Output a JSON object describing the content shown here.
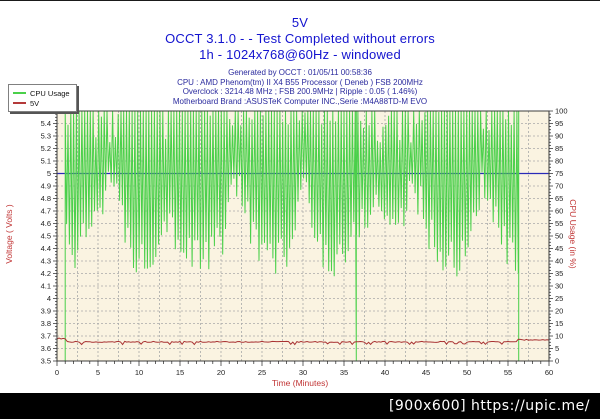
{
  "header": {
    "title": "5V",
    "subtitle_line1": "OCCT 3.1.0 -  - Test Completed without errors",
    "subtitle_line2": "1h - 1024x768@60Hz - windowed",
    "info_lines": [
      "Generated by OCCT : 01/05/11 00:58:36",
      "CPU : AMD Phenom(tm) II X4 B55 Processor ( Deneb ) FSB 200MHz",
      "Overclock : 3214.48 MHz ; FSB 200.9MHz | Ripple : 0.05 ( 1.46%)",
      "Motherboard Brand :ASUSTeK Computer INC.,Serie :M4A88TD-M EVO"
    ]
  },
  "legend": {
    "items": [
      {
        "label": "CPU Usage",
        "color": "#4ad04a"
      },
      {
        "label": "5V",
        "color": "#b43a3a"
      }
    ]
  },
  "watermark": {
    "text": "[900x600] https://upic.me/"
  },
  "colors": {
    "plot_bg": "#faf3e1",
    "grid": "#a9a9a9",
    "frame": "#3c3c3c",
    "tick_text": "#1f1f1f",
    "cpu_green": "#4ad04a",
    "volt_red": "#a83232",
    "ref_blue": "#2a2ab8"
  },
  "chart_data": {
    "type": "line",
    "title": "5V",
    "x_axis": {
      "label": "Time (Minutes)",
      "min": 0,
      "max": 60,
      "label_step": 5,
      "minor_tick_step": 1,
      "grid_step": 2.5
    },
    "y_left": {
      "label": "Voltage ( Volts )",
      "min": 3.5,
      "max": 5.5,
      "label_step": 0.1
    },
    "y_right": {
      "label": "CPU Usage (in %)",
      "min": 0,
      "max": 100,
      "label_step": 5
    },
    "reference_line": {
      "name": "nominal-5v",
      "axis": "left",
      "value": 5.0
    },
    "series": [
      {
        "name": "CPU Usage",
        "axis": "right",
        "type": "oscillating",
        "osc_top": 100,
        "osc_half_period": 0.17,
        "start": 1.0,
        "end": 56.3,
        "full_drops": [
          1.0,
          36.5,
          56.3
        ],
        "min_envelope": [
          [
            1.2,
            48
          ],
          [
            2,
            42
          ],
          [
            3,
            45
          ],
          [
            4,
            55
          ],
          [
            5,
            62
          ],
          [
            6,
            70
          ],
          [
            6.5,
            74
          ],
          [
            7,
            68
          ],
          [
            8,
            55
          ],
          [
            9,
            45
          ],
          [
            10,
            40
          ],
          [
            11,
            42
          ],
          [
            12,
            48
          ],
          [
            13,
            55
          ],
          [
            13.5,
            60
          ],
          [
            14,
            55
          ],
          [
            15,
            48
          ],
          [
            16,
            42
          ],
          [
            17,
            45
          ],
          [
            18,
            40
          ],
          [
            19,
            44
          ],
          [
            20,
            48
          ],
          [
            21,
            58
          ],
          [
            21.5,
            68
          ],
          [
            22,
            73
          ],
          [
            23,
            62
          ],
          [
            24,
            50
          ],
          [
            25,
            42
          ],
          [
            26,
            40
          ],
          [
            27,
            44
          ],
          [
            28,
            40
          ],
          [
            29,
            52
          ],
          [
            29.5,
            62
          ],
          [
            30,
            70
          ],
          [
            30.5,
            66
          ],
          [
            31,
            56
          ],
          [
            32,
            46
          ],
          [
            33,
            42
          ],
          [
            34,
            40
          ],
          [
            35,
            44
          ],
          [
            36,
            48
          ],
          [
            37,
            55
          ],
          [
            38,
            60
          ],
          [
            39,
            63
          ],
          [
            40,
            58
          ],
          [
            41,
            55
          ],
          [
            42,
            58
          ],
          [
            43,
            65
          ],
          [
            43.5,
            72
          ],
          [
            44,
            66
          ],
          [
            45,
            56
          ],
          [
            46,
            46
          ],
          [
            47,
            40
          ],
          [
            48,
            43
          ],
          [
            49,
            39
          ],
          [
            50,
            46
          ],
          [
            51,
            58
          ],
          [
            51.5,
            68
          ],
          [
            52,
            70
          ],
          [
            53,
            60
          ],
          [
            54,
            50
          ],
          [
            55,
            44
          ],
          [
            56,
            38
          ]
        ]
      },
      {
        "name": "5V",
        "axis": "left",
        "type": "noisy-flat",
        "sample_step": 0.25,
        "segments": [
          {
            "from": 0,
            "to": 1.0,
            "value": 3.68
          },
          {
            "from": 1.0,
            "to": 56.2,
            "value": 3.653
          },
          {
            "from": 56.2,
            "to": 60,
            "value": 3.67
          }
        ],
        "jitter": 0.008,
        "dip": 0.018,
        "dip_chance": 0.1
      }
    ]
  }
}
